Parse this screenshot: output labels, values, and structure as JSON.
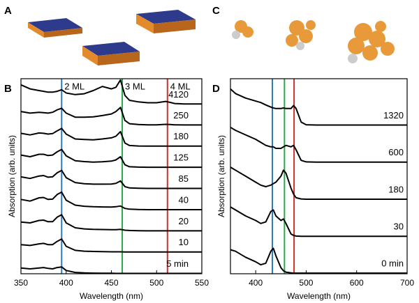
{
  "panel_labels": [
    "A",
    "C"
  ],
  "chart_data": [
    {
      "type": "line",
      "panel": "B",
      "xlabel": "Wavelength (nm)",
      "ylabel": "Absorption (arb. units)",
      "xlim": [
        350,
        550
      ],
      "xticks": [
        350,
        400,
        450,
        500,
        550
      ],
      "ylim": [
        0,
        12
      ],
      "x": [
        350,
        360,
        370,
        375,
        380,
        385,
        390,
        395,
        400,
        410,
        420,
        430,
        440,
        450,
        455,
        460,
        465,
        470,
        480,
        490,
        500,
        510,
        515,
        520,
        530,
        540,
        550
      ],
      "vlines": [
        {
          "value": 395,
          "color": "#2b7bc0",
          "label": "2 ML"
        },
        {
          "value": 462,
          "color": "#2aa84a",
          "label": "3 ML"
        },
        {
          "value": 512,
          "color": "#d3302c",
          "label": "4 ML"
        }
      ],
      "series": [
        {
          "name": "4120",
          "color": "#000000",
          "values": [
            1.3,
            1.05,
            0.95,
            0.9,
            0.85,
            0.85,
            0.9,
            1.0,
            0.8,
            0.7,
            0.75,
            0.95,
            1.2,
            1.05,
            1.15,
            1.6,
            0.65,
            0.35,
            0.25,
            0.2,
            0.2,
            0.28,
            0.22,
            0.15,
            0.12,
            0.12,
            0.12
          ]
        },
        {
          "name": "250",
          "color": "#000000",
          "values": [
            0.95,
            0.85,
            0.9,
            0.88,
            0.85,
            0.9,
            1.05,
            1.15,
            0.85,
            0.6,
            0.6,
            0.62,
            0.7,
            0.8,
            0.95,
            1.2,
            0.4,
            0.2,
            0.15,
            0.13,
            0.13,
            0.16,
            0.15,
            0.13,
            0.12,
            0.12,
            0.12
          ]
        },
        {
          "name": "180",
          "color": "#000000",
          "values": [
            0.9,
            0.8,
            0.92,
            0.9,
            0.85,
            0.88,
            1.05,
            1.2,
            0.85,
            0.55,
            0.52,
            0.5,
            0.55,
            0.62,
            0.72,
            1.0,
            0.3,
            0.15,
            0.12,
            0.11,
            0.11,
            0.11,
            0.11,
            0.11,
            0.11,
            0.11,
            0.11
          ]
        },
        {
          "name": "125",
          "color": "#000000",
          "values": [
            0.85,
            0.75,
            0.9,
            0.9,
            0.82,
            0.85,
            1.05,
            1.2,
            0.8,
            0.5,
            0.45,
            0.42,
            0.44,
            0.48,
            0.55,
            0.75,
            0.25,
            0.13,
            0.11,
            0.1,
            0.1,
            0.1,
            0.1,
            0.1,
            0.1,
            0.1,
            0.1
          ]
        },
        {
          "name": "85",
          "color": "#000000",
          "values": [
            0.8,
            0.7,
            0.85,
            0.88,
            0.78,
            0.8,
            1.05,
            1.2,
            0.75,
            0.45,
            0.38,
            0.35,
            0.35,
            0.36,
            0.4,
            0.55,
            0.2,
            0.12,
            0.1,
            0.09,
            0.09,
            0.09,
            0.09,
            0.09,
            0.09,
            0.09,
            0.09
          ]
        },
        {
          "name": "40",
          "color": "#000000",
          "values": [
            0.7,
            0.6,
            0.8,
            0.82,
            0.7,
            0.72,
            1.0,
            1.15,
            0.65,
            0.35,
            0.28,
            0.25,
            0.24,
            0.23,
            0.25,
            0.3,
            0.15,
            0.1,
            0.08,
            0.07,
            0.07,
            0.07,
            0.07,
            0.07,
            0.07,
            0.07,
            0.07
          ]
        },
        {
          "name": "20",
          "color": "#000000",
          "values": [
            0.6,
            0.55,
            0.7,
            0.72,
            0.62,
            0.62,
            0.9,
            1.05,
            0.55,
            0.25,
            0.18,
            0.15,
            0.14,
            0.13,
            0.13,
            0.15,
            0.1,
            0.08,
            0.07,
            0.06,
            0.06,
            0.06,
            0.06,
            0.06,
            0.06,
            0.06,
            0.06
          ]
        },
        {
          "name": "10",
          "color": "#000000",
          "values": [
            0.5,
            0.45,
            0.55,
            0.58,
            0.5,
            0.5,
            0.7,
            0.85,
            0.4,
            0.15,
            0.1,
            0.08,
            0.07,
            0.06,
            0.06,
            0.06,
            0.05,
            0.05,
            0.05,
            0.05,
            0.05,
            0.05,
            0.05,
            0.05,
            0.05,
            0.05,
            0.05
          ]
        },
        {
          "name": "5 min",
          "color": "#000000",
          "values": [
            0.35,
            0.3,
            0.35,
            0.38,
            0.33,
            0.3,
            0.38,
            0.42,
            0.2,
            0.08,
            0.05,
            0.04,
            0.03,
            0.03,
            0.02,
            0.02,
            0.02,
            0.02,
            0.02,
            0.02,
            0.02,
            0.02,
            0.02,
            0.02,
            0.02,
            0.02,
            0.02
          ]
        }
      ]
    },
    {
      "type": "line",
      "panel": "D",
      "xlabel": "Wavelength (nm)",
      "ylabel": "Absorption (arb. units)",
      "xlim": [
        350,
        700
      ],
      "xticks": [
        400,
        500,
        600,
        700
      ],
      "ylim": [
        0,
        6.5
      ],
      "x": [
        350,
        360,
        380,
        400,
        410,
        420,
        430,
        435,
        440,
        450,
        455,
        460,
        470,
        475,
        480,
        490,
        500,
        520,
        550,
        600,
        650,
        700
      ],
      "vlines": [
        {
          "value": 433,
          "color": "#2b7bc0"
        },
        {
          "value": 457,
          "color": "#2aa84a"
        },
        {
          "value": 476,
          "color": "#d3302c"
        }
      ],
      "series": [
        {
          "name": "1320",
          "color": "#000000",
          "values": [
            1.25,
            1.1,
            0.95,
            0.85,
            0.8,
            0.72,
            0.65,
            0.62,
            0.6,
            0.6,
            0.62,
            0.6,
            0.6,
            0.7,
            0.6,
            0.15,
            0.06,
            0.05,
            0.05,
            0.05,
            0.05,
            0.05
          ]
        },
        {
          "name": "600",
          "color": "#000000",
          "values": [
            1.2,
            1.1,
            0.95,
            0.8,
            0.7,
            0.6,
            0.55,
            0.55,
            0.5,
            0.5,
            0.55,
            0.6,
            0.55,
            0.6,
            0.45,
            0.1,
            0.05,
            0.04,
            0.04,
            0.04,
            0.04,
            0.04
          ]
        },
        {
          "name": "180",
          "color": "#000000",
          "values": [
            1.1,
            1.0,
            0.8,
            0.6,
            0.5,
            0.45,
            0.5,
            0.55,
            0.6,
            0.8,
            1.0,
            0.9,
            0.4,
            0.2,
            0.08,
            0.04,
            0.03,
            0.03,
            0.03,
            0.03,
            0.03,
            0.03
          ]
        },
        {
          "name": "30",
          "color": "#000000",
          "values": [
            1.0,
            0.9,
            0.7,
            0.55,
            0.45,
            0.5,
            0.85,
            0.9,
            0.7,
            0.55,
            0.6,
            0.45,
            0.1,
            0.05,
            0.03,
            0.02,
            0.02,
            0.02,
            0.02,
            0.02,
            0.02,
            0.02
          ]
        },
        {
          "name": "0 min",
          "color": "#000000",
          "values": [
            0.8,
            0.75,
            0.55,
            0.4,
            0.3,
            0.35,
            0.75,
            0.85,
            0.6,
            0.2,
            0.1,
            0.05,
            0.03,
            0.02,
            0.02,
            0.02,
            0.02,
            0.02,
            0.02,
            0.02,
            0.02,
            0.02
          ]
        }
      ]
    }
  ]
}
